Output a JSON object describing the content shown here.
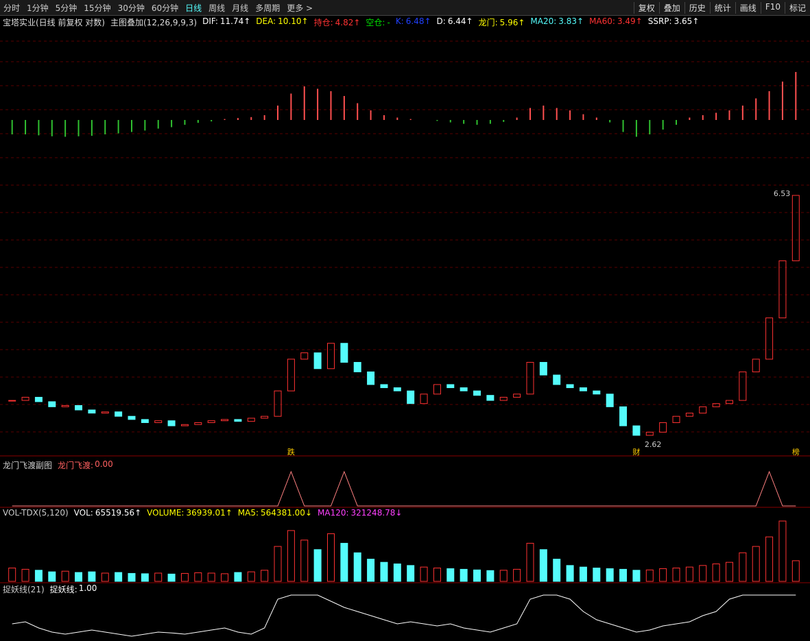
{
  "toolbar": {
    "tabs": [
      "分时",
      "1分钟",
      "5分钟",
      "15分钟",
      "30分钟",
      "60分钟",
      "日线",
      "周线",
      "月线",
      "多周期",
      "更多 >"
    ],
    "active": 6,
    "buttons": [
      "复权",
      "叠加",
      "历史",
      "统计",
      "画线",
      "F10",
      "标记"
    ]
  },
  "header": {
    "title": "宝塔实业(日线 前复权 对数)",
    "overlay": "主图叠加(12,26,9,9,3)",
    "items": [
      {
        "label": "DIF:",
        "value": 11.74,
        "arrow": "↑",
        "color": "#ffffff"
      },
      {
        "label": "DEA:",
        "value": 10.1,
        "arrow": "↑",
        "color": "#ffff00"
      },
      {
        "label": "持仓:",
        "value": 4.82,
        "arrow": "↑",
        "color": "#ff3232"
      },
      {
        "label": "空仓:",
        "value": "-",
        "arrow": "",
        "color": "#00e000"
      },
      {
        "label": "K:",
        "value": 6.48,
        "arrow": "↑",
        "color": "#2040ff"
      },
      {
        "label": "D:",
        "value": 6.44,
        "arrow": "↑",
        "color": "#ffffff"
      },
      {
        "label": "龙门:",
        "value": 5.96,
        "arrow": "↑",
        "color": "#ffff00"
      },
      {
        "label": "MA20:",
        "value": 3.83,
        "arrow": "↑",
        "color": "#54fcfc"
      },
      {
        "label": "MA60:",
        "value": 3.49,
        "arrow": "↑",
        "color": "#ff3232"
      },
      {
        "label": "SSRP:",
        "value": 3.65,
        "arrow": "↑",
        "color": "#ffffff"
      }
    ]
  },
  "panes": {
    "longmen": {
      "title": "龙门飞渡副图",
      "label": "龙门飞渡:",
      "value": 0.0
    },
    "vol": {
      "title": "VOL-TDX(5,120)",
      "items": [
        {
          "label": "VOL:",
          "value": 65519.56,
          "arrow": "↑",
          "color": "#ffffff"
        },
        {
          "label": "VOLUME:",
          "value": 36939.01,
          "arrow": "↑",
          "color": "#ffff00"
        },
        {
          "label": "MA5:",
          "value": 564381.0,
          "arrow": "↓",
          "color": "#ffff00"
        },
        {
          "label": "MA120:",
          "value": 321248.78,
          "arrow": "↓",
          "color": "#ff40ff"
        }
      ]
    },
    "zhuoyao": {
      "title": "捉妖线(21)",
      "label": "捉妖线:",
      "value": 1.0
    }
  },
  "chart_data": {
    "type": "candlestick",
    "up_color": "#ff3232",
    "down_color": "#54fcfc",
    "close": [
      3.3,
      3.35,
      3.28,
      3.2,
      3.22,
      3.15,
      3.1,
      3.12,
      3.05,
      3.0,
      2.95,
      2.98,
      2.9,
      2.92,
      2.95,
      2.98,
      3.0,
      2.97,
      3.02,
      3.05,
      3.45,
      3.95,
      4.05,
      3.8,
      4.2,
      3.9,
      3.75,
      3.55,
      3.5,
      3.45,
      3.25,
      3.4,
      3.55,
      3.5,
      3.45,
      3.38,
      3.3,
      3.35,
      3.4,
      3.9,
      3.7,
      3.55,
      3.5,
      3.45,
      3.4,
      3.2,
      2.9,
      2.75,
      2.8,
      2.95,
      3.05,
      3.1,
      3.2,
      3.25,
      3.3,
      3.75,
      3.95,
      4.6,
      5.5,
      6.53
    ],
    "price_labels": [
      6.53,
      2.62
    ],
    "signals": [
      null,
      null,
      null,
      null,
      null,
      null,
      null,
      null,
      null,
      null,
      null,
      null,
      null,
      null,
      null,
      null,
      null,
      null,
      null,
      null,
      null,
      "跌",
      null,
      null,
      null,
      null,
      null,
      null,
      null,
      null,
      null,
      null,
      null,
      null,
      null,
      null,
      null,
      null,
      null,
      null,
      null,
      null,
      null,
      null,
      null,
      null,
      null,
      "财",
      null,
      null,
      null,
      null,
      null,
      null,
      null,
      null,
      null,
      null,
      null,
      "榜"
    ],
    "macd": [
      -0.3,
      -0.3,
      -0.32,
      -0.34,
      -0.35,
      -0.34,
      -0.33,
      -0.3,
      -0.28,
      -0.25,
      -0.22,
      -0.18,
      -0.15,
      -0.1,
      -0.06,
      -0.03,
      0.02,
      0.04,
      0.06,
      0.1,
      0.3,
      0.55,
      0.7,
      0.65,
      0.6,
      0.5,
      0.35,
      0.2,
      0.1,
      0.05,
      0.02,
      0.0,
      -0.02,
      -0.05,
      -0.08,
      -0.1,
      -0.08,
      -0.04,
      0.05,
      0.25,
      0.3,
      0.25,
      0.2,
      0.12,
      0.05,
      -0.05,
      -0.25,
      -0.35,
      -0.3,
      -0.2,
      -0.1,
      0.05,
      0.1,
      0.15,
      0.2,
      0.3,
      0.45,
      0.6,
      0.8,
      1.0
    ],
    "volume": [
      420000,
      380000,
      350000,
      300000,
      320000,
      280000,
      300000,
      260000,
      280000,
      250000,
      240000,
      260000,
      230000,
      250000,
      270000,
      260000,
      240000,
      280000,
      300000,
      350000,
      1100000,
      1600000,
      1300000,
      1000000,
      1500000,
      1200000,
      900000,
      700000,
      600000,
      550000,
      500000,
      450000,
      420000,
      400000,
      380000,
      360000,
      340000,
      350000,
      380000,
      1200000,
      1000000,
      700000,
      500000,
      450000,
      420000,
      400000,
      380000,
      350000,
      360000,
      400000,
      420000,
      450000,
      500000,
      550000,
      600000,
      900000,
      1100000,
      1400000,
      1900000,
      650000
    ],
    "longmen": [
      0,
      0,
      0,
      0,
      0,
      0,
      0,
      0,
      0,
      0,
      0,
      0,
      0,
      0,
      0,
      0,
      0,
      0,
      0,
      0,
      0,
      1,
      0,
      0,
      0,
      1,
      0,
      0,
      0,
      0,
      0,
      0,
      0,
      0,
      0,
      0,
      0,
      0,
      0,
      0,
      0,
      0,
      0,
      0,
      0,
      0,
      0,
      0,
      0,
      0,
      0,
      0,
      0,
      0,
      0,
      0,
      0,
      1,
      0,
      0
    ],
    "zhuoyao": [
      0.3,
      0.35,
      0.2,
      0.1,
      0.05,
      0.1,
      0.15,
      0.1,
      0.05,
      0.0,
      0.05,
      0.1,
      0.08,
      0.05,
      0.1,
      0.15,
      0.2,
      0.1,
      0.05,
      0.2,
      0.9,
      1.0,
      1.0,
      1.0,
      0.85,
      0.7,
      0.6,
      0.5,
      0.4,
      0.3,
      0.35,
      0.3,
      0.25,
      0.3,
      0.2,
      0.15,
      0.1,
      0.2,
      0.3,
      0.9,
      1.0,
      1.0,
      0.9,
      0.6,
      0.4,
      0.3,
      0.2,
      0.1,
      0.15,
      0.25,
      0.3,
      0.35,
      0.5,
      0.6,
      0.9,
      1.0,
      1.0,
      1.0,
      1.0,
      1.0
    ]
  }
}
